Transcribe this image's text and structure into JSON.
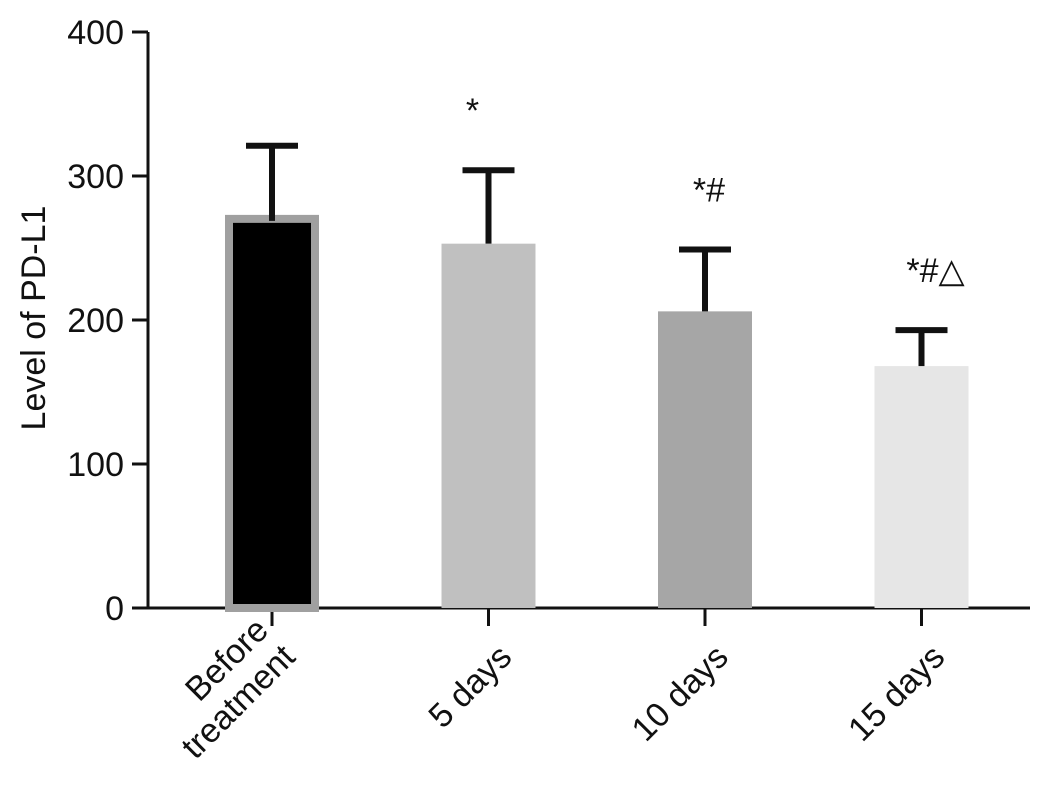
{
  "chart_data": {
    "type": "bar",
    "title": "",
    "xlabel": "",
    "ylabel": "Level of PD-L1",
    "ylim": [
      0,
      400
    ],
    "yticks": [
      0,
      100,
      200,
      300,
      400
    ],
    "categories": [
      [
        "Before",
        "treatment"
      ],
      [
        "5 days"
      ],
      [
        "10 days"
      ],
      [
        "15 days"
      ]
    ],
    "values": [
      273,
      253,
      206,
      168
    ],
    "error_upper": [
      48,
      51,
      43,
      25
    ],
    "annotations": [
      "",
      "*",
      "*#",
      "*#△"
    ],
    "bar_fill": [
      "#000000",
      "#c0c0c0",
      "#a6a6a6",
      "#e6e6e6"
    ],
    "bar_stroke": [
      "#a0a0a0",
      null,
      null,
      null
    ],
    "grid": false,
    "legend": "none"
  }
}
